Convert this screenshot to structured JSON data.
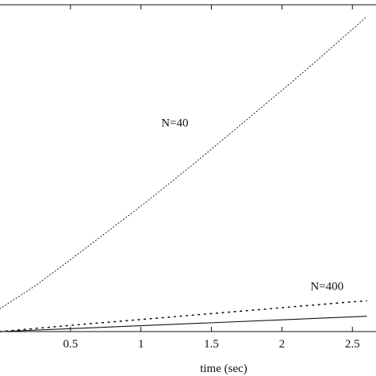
{
  "chart_data": {
    "type": "line",
    "xlabel": "time (sec)",
    "xlim": [
      0,
      2.6
    ],
    "ylim": [
      0,
      1
    ],
    "x_ticks": [
      0.5,
      1,
      1.5,
      2,
      2.5
    ],
    "x_tick_labels": [
      "0.5",
      "1",
      "1.5",
      "2",
      "2.5"
    ],
    "grid": false,
    "series": [
      {
        "style": "dotted",
        "x": [
          0,
          0.25,
          0.5,
          0.75,
          1,
          1.25,
          1.5,
          1.75,
          2,
          2.25,
          2.5,
          2.6
        ],
        "y": [
          0.07,
          0.14,
          0.22,
          0.302,
          0.384,
          0.47,
          0.558,
          0.648,
          0.738,
          0.83,
          0.925,
          0.963
        ]
      },
      {
        "style": "dotted-coarse",
        "x": [
          0,
          0.5,
          1,
          1.5,
          2,
          2.5,
          2.6
        ],
        "y": [
          0,
          0.019,
          0.037,
          0.055,
          0.073,
          0.091,
          0.094
        ]
      },
      {
        "style": "solid",
        "x": [
          0,
          0.5,
          1,
          1.5,
          2,
          2.5,
          2.6
        ],
        "y": [
          0,
          0.009,
          0.018,
          0.027,
          0.036,
          0.045,
          0.047
        ]
      }
    ],
    "annotations": [
      {
        "text": "N=40",
        "x": 1.24,
        "y": 0.628
      },
      {
        "text": "N=400",
        "x": 2.32,
        "y": 0.127
      }
    ]
  }
}
